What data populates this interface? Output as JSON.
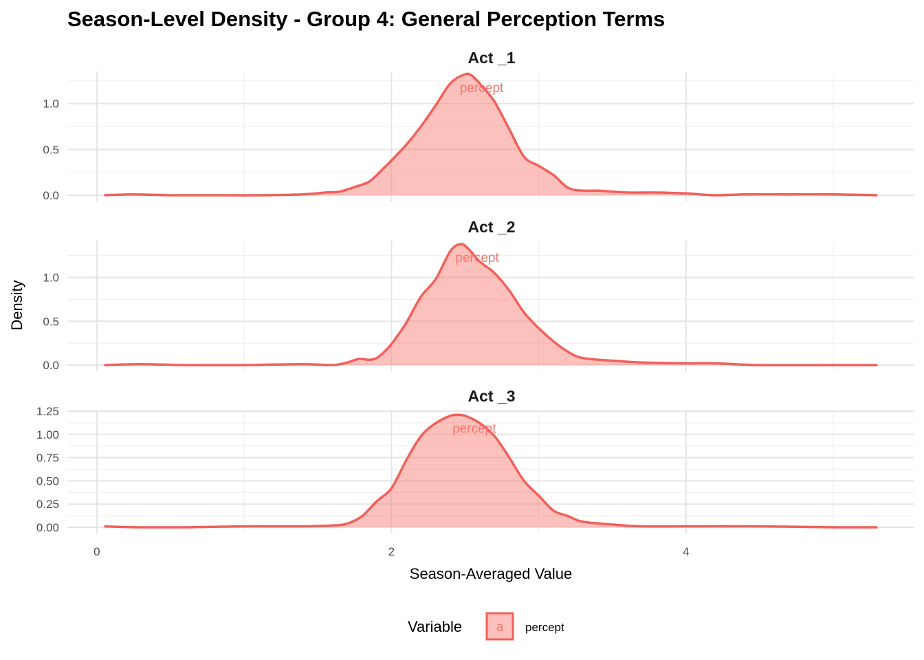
{
  "chart_data": {
    "type": "area",
    "title": "Season-Level Density - Group 4: General Perception Terms",
    "xlabel": "Season-Averaged Value",
    "ylabel": "Density",
    "xlim": [
      -0.2,
      5.55
    ],
    "x_ticks": [
      0,
      2,
      4
    ],
    "x_tick_labels": [
      "0",
      "2",
      "4"
    ],
    "grid": true,
    "color": "#f8766d",
    "legend": {
      "title": "Variable",
      "position": "bottom",
      "key_glyph": "a",
      "entries": [
        "percept"
      ]
    },
    "panels": [
      {
        "label": "Act _1",
        "ylim": [
          0,
          1.35
        ],
        "y_ticks": [
          0,
          0.5,
          1.0
        ],
        "y_tick_labels": [
          "0.0",
          "0.5",
          "1.0"
        ],
        "peak_label": "percept",
        "series": [
          {
            "name": "percept",
            "x": [
              0.05,
              0.25,
              0.5,
              0.8,
              1.1,
              1.4,
              1.55,
              1.65,
              1.75,
              1.85,
              1.95,
              2.0,
              2.1,
              2.2,
              2.3,
              2.4,
              2.5,
              2.55,
              2.62,
              2.7,
              2.8,
              2.9,
              3.0,
              3.1,
              3.2,
              3.3,
              3.4,
              3.6,
              3.8,
              4.0,
              4.2,
              4.4,
              4.7,
              5.0,
              5.3
            ],
            "y": [
              0.0,
              0.01,
              0.0,
              0.0,
              0.0,
              0.01,
              0.03,
              0.04,
              0.09,
              0.15,
              0.3,
              0.38,
              0.55,
              0.75,
              0.98,
              1.22,
              1.32,
              1.3,
              1.18,
              1.02,
              0.72,
              0.42,
              0.32,
              0.22,
              0.08,
              0.05,
              0.05,
              0.03,
              0.03,
              0.02,
              0.0,
              0.01,
              0.01,
              0.01,
              0.0
            ]
          }
        ]
      },
      {
        "label": "Act _2",
        "ylim": [
          0,
          1.42
        ],
        "y_ticks": [
          0,
          0.5,
          1.0
        ],
        "y_tick_labels": [
          "0.0",
          "0.5",
          "1.0"
        ],
        "peak_label": "percept",
        "series": [
          {
            "name": "percept",
            "x": [
              0.05,
              0.3,
              0.6,
              1.0,
              1.4,
              1.6,
              1.7,
              1.78,
              1.85,
              1.9,
              1.95,
              2.0,
              2.1,
              2.2,
              2.3,
              2.4,
              2.47,
              2.52,
              2.6,
              2.7,
              2.8,
              2.9,
              3.0,
              3.1,
              3.2,
              3.3,
              3.5,
              3.7,
              4.0,
              4.2,
              4.5,
              5.0,
              5.3
            ],
            "y": [
              0.0,
              0.01,
              0.0,
              0.0,
              0.01,
              0.0,
              0.03,
              0.07,
              0.06,
              0.08,
              0.15,
              0.24,
              0.48,
              0.78,
              0.98,
              1.3,
              1.38,
              1.33,
              1.18,
              1.05,
              0.85,
              0.6,
              0.42,
              0.27,
              0.15,
              0.08,
              0.05,
              0.03,
              0.02,
              0.02,
              0.0,
              0.0,
              0.0
            ]
          }
        ]
      },
      {
        "label": "Act _3",
        "ylim": [
          0,
          1.25
        ],
        "y_ticks": [
          0,
          0.25,
          0.5,
          0.75,
          1.0,
          1.25
        ],
        "y_tick_labels": [
          "0.00",
          "0.25",
          "0.50",
          "0.75",
          "1.00",
          "1.25"
        ],
        "peak_label": "percept",
        "series": [
          {
            "name": "percept",
            "x": [
              0.05,
              0.3,
              0.6,
              1.0,
              1.4,
              1.6,
              1.7,
              1.8,
              1.9,
              2.0,
              2.1,
              2.2,
              2.3,
              2.4,
              2.45,
              2.5,
              2.6,
              2.7,
              2.8,
              2.9,
              3.0,
              3.1,
              3.2,
              3.3,
              3.5,
              3.7,
              4.0,
              4.5,
              5.0,
              5.3
            ],
            "y": [
              0.01,
              0.0,
              0.0,
              0.01,
              0.01,
              0.02,
              0.04,
              0.12,
              0.28,
              0.42,
              0.72,
              0.98,
              1.12,
              1.2,
              1.21,
              1.2,
              1.12,
              0.98,
              0.75,
              0.5,
              0.34,
              0.18,
              0.12,
              0.06,
              0.03,
              0.01,
              0.01,
              0.01,
              0.0,
              0.0
            ]
          }
        ]
      }
    ]
  }
}
